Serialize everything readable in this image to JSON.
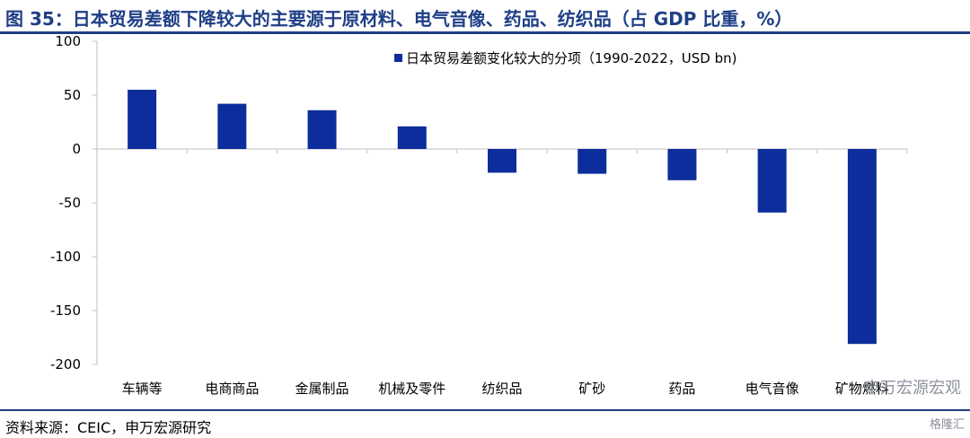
{
  "title": "图 35：日本贸易差额下降较大的主要源于原材料、电气音像、药品、纺织品（占 GDP 比重，%）",
  "source": "资料来源：CEIC，申万宏源研究",
  "watermark": "申万宏源宏观",
  "watermark2": "格隆汇",
  "colors": {
    "bar": "#0c2d9b",
    "accent": "#1f3f86",
    "axis": "#bfbfbf"
  },
  "chart_data": {
    "type": "bar",
    "categories": [
      "车辆等",
      "电商商品",
      "金属制品",
      "机械及零件",
      "纺织品",
      "矿砂",
      "药品",
      "电气音像",
      "矿物燃料"
    ],
    "series": [
      {
        "name": "日本贸易差额变化较大的分项（1990-2022，USD bn)",
        "values": [
          55,
          42,
          36,
          21,
          -22,
          -23,
          -29,
          -59,
          -181
        ]
      }
    ],
    "ylim": [
      -200,
      100
    ],
    "yticks": [
      100,
      50,
      0,
      -50,
      -100,
      -150,
      -200
    ],
    "legend": "top-center",
    "grid": false
  }
}
